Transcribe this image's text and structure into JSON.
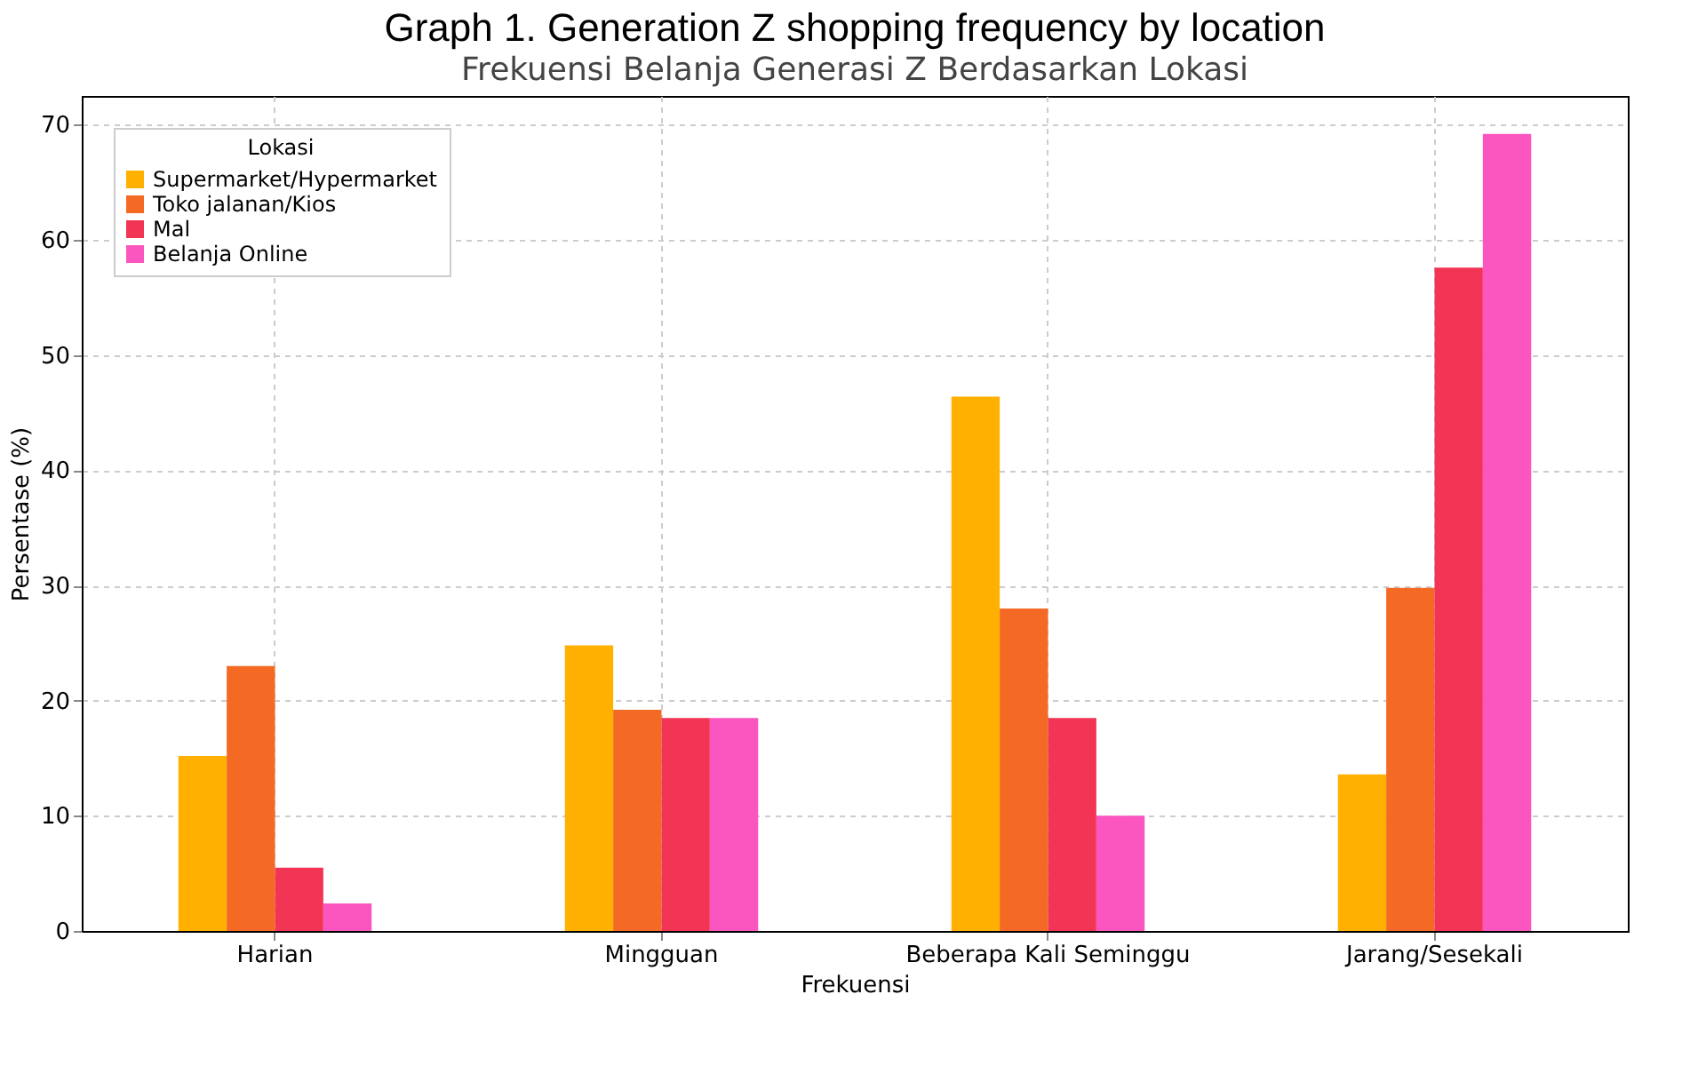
{
  "chart_data": {
    "type": "bar",
    "title": "Graph 1. Generation Z shopping frequency by location",
    "subtitle": "Frekuensi Belanja Generasi Z Berdasarkan Lokasi",
    "xlabel": "Frekuensi",
    "ylabel": "Persentase (%)",
    "legend_title": "Lokasi",
    "categories": [
      "Harian",
      "Mingguan",
      "Beberapa Kali Seminggu",
      "Jarang/Sesekali"
    ],
    "series": [
      {
        "name": "Supermarket/Hypermarket",
        "color": "#ffb000",
        "values": [
          15.2,
          24.8,
          46.4,
          13.6
        ]
      },
      {
        "name": "Toko jalanan/Kios",
        "color": "#f46a25",
        "values": [
          23.0,
          19.2,
          28.0,
          29.8
        ]
      },
      {
        "name": "Mal",
        "color": "#f23455",
        "values": [
          5.5,
          18.5,
          18.5,
          57.6
        ]
      },
      {
        "name": "Belanja Online",
        "color": "#fb56c0",
        "values": [
          2.4,
          18.5,
          10.0,
          69.2
        ]
      }
    ],
    "ylim": [
      0,
      72.5
    ],
    "yticks": [
      0,
      10,
      20,
      30,
      40,
      50,
      60,
      70
    ],
    "grid": true,
    "legend": "top left"
  }
}
